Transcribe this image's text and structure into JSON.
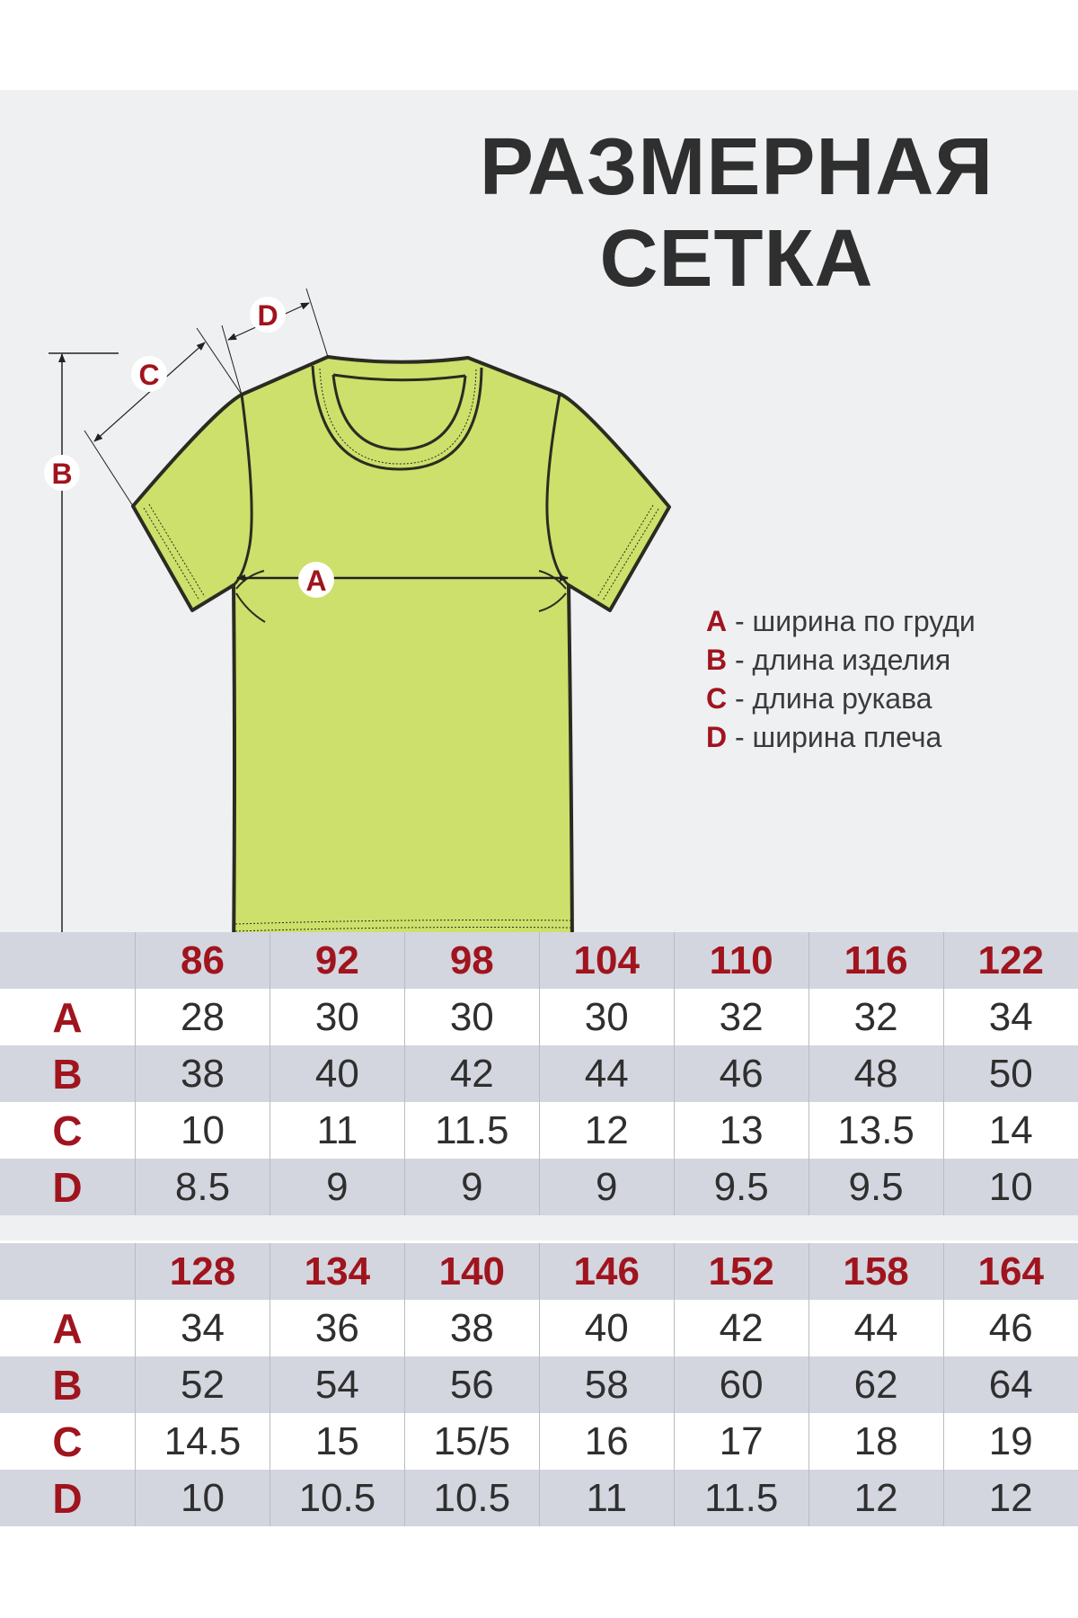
{
  "title": {
    "line1": "РАЗМЕРНАЯ",
    "line2": "СЕТКА"
  },
  "diagram": {
    "labels": {
      "a": "A",
      "b": "B",
      "c": "C",
      "d": "D"
    },
    "shirt_color": "#cde06b",
    "accent_color": "#a0141e"
  },
  "legend": [
    {
      "key": "A",
      "text": " - ширина по груди"
    },
    {
      "key": "B",
      "text": " - длина изделия"
    },
    {
      "key": "C",
      "text": " - длина рукава"
    },
    {
      "key": "D",
      "text": " - ширина плеча"
    }
  ],
  "tables": [
    {
      "sizes": [
        "86",
        "92",
        "98",
        "104",
        "110",
        "116",
        "122"
      ],
      "rows": [
        {
          "label": "A",
          "values": [
            "28",
            "30",
            "30",
            "30",
            "32",
            "32",
            "34"
          ]
        },
        {
          "label": "B",
          "values": [
            "38",
            "40",
            "42",
            "44",
            "46",
            "48",
            "50"
          ]
        },
        {
          "label": "C",
          "values": [
            "10",
            "11",
            "11.5",
            "12",
            "13",
            "13.5",
            "14"
          ]
        },
        {
          "label": "D",
          "values": [
            "8.5",
            "9",
            "9",
            "9",
            "9.5",
            "9.5",
            "10"
          ]
        }
      ]
    },
    {
      "sizes": [
        "128",
        "134",
        "140",
        "146",
        "152",
        "158",
        "164"
      ],
      "rows": [
        {
          "label": "A",
          "values": [
            "34",
            "36",
            "38",
            "40",
            "42",
            "44",
            "46"
          ]
        },
        {
          "label": "B",
          "values": [
            "52",
            "54",
            "56",
            "58",
            "60",
            "62",
            "64"
          ]
        },
        {
          "label": "C",
          "values": [
            "14.5",
            "15",
            "15/5",
            "16",
            "17",
            "18",
            "19"
          ]
        },
        {
          "label": "D",
          "values": [
            "10",
            "10.5",
            "10.5",
            "11",
            "11.5",
            "12",
            "12"
          ]
        }
      ]
    }
  ]
}
